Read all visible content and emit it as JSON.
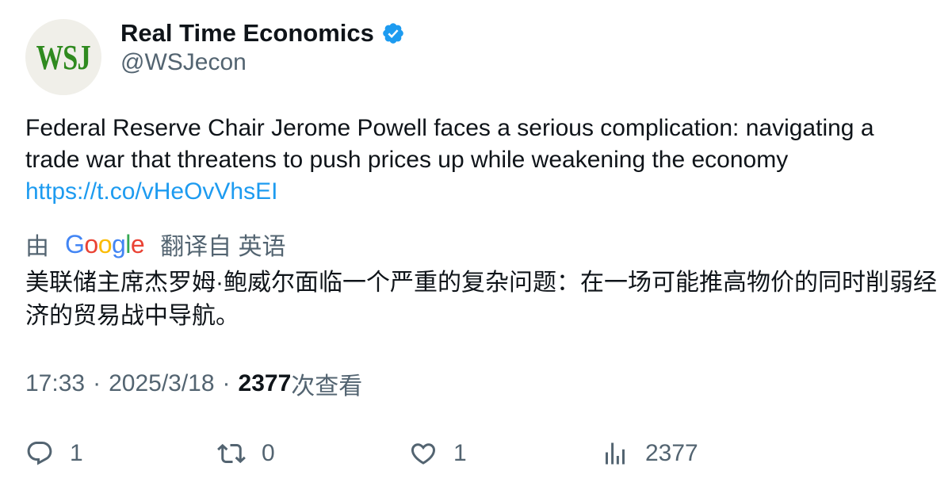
{
  "author": {
    "avatar_text": "WSJ",
    "display_name": "Real Time Economics",
    "handle": "@WSJecon",
    "verified_icon": "verified-badge-icon"
  },
  "tweet": {
    "text": "Federal Reserve Chair Jerome Powell faces a serious complication: navigating a trade war that threatens to push prices up while weakening the economy",
    "link": "https://t.co/vHeOvVhsEI"
  },
  "translation": {
    "prefix": "由",
    "provider": "Google",
    "suffix": "翻译自 英语",
    "text": "美联储主席杰罗姆·鲍威尔面临一个严重的复杂问题：在一场可能推高物价的同时削弱经济的贸易战中导航。"
  },
  "meta": {
    "time": "17:33",
    "date": "2025/3/18",
    "views": "2377",
    "views_label": "次查看"
  },
  "actions": {
    "replies": "1",
    "retweets": "0",
    "likes": "1",
    "views": "2377"
  },
  "colors": {
    "link": "#1d9bf0",
    "secondary_text": "#536471",
    "verified": "#1d9bf0",
    "wsj_logo": "#2f8a1f",
    "google_blue": "#4285F4",
    "google_red": "#EA4335",
    "google_yellow": "#FBBC05",
    "google_green": "#34A853"
  }
}
